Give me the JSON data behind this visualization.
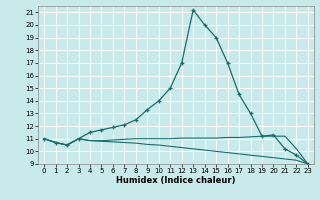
{
  "xlabel": "Humidex (Indice chaleur)",
  "xlim": [
    -0.5,
    23.5
  ],
  "ylim": [
    9,
    21.5
  ],
  "yticks": [
    9,
    10,
    11,
    12,
    13,
    14,
    15,
    16,
    17,
    18,
    19,
    20,
    21
  ],
  "xticks": [
    0,
    1,
    2,
    3,
    4,
    5,
    6,
    7,
    8,
    9,
    10,
    11,
    12,
    13,
    14,
    15,
    16,
    17,
    18,
    19,
    20,
    21,
    22,
    23
  ],
  "bg_color": "#c8eaea",
  "grid_color": "#b0d4d4",
  "line_color": "#1a6b6b",
  "line1_x": [
    0,
    1,
    2,
    3,
    4,
    5,
    6,
    7,
    8,
    9,
    10,
    11,
    12,
    13,
    14,
    15,
    16,
    17,
    18,
    19,
    20,
    21,
    22,
    23
  ],
  "line1_y": [
    11.0,
    10.7,
    10.5,
    11.0,
    11.5,
    11.7,
    11.9,
    12.1,
    12.5,
    13.3,
    14.0,
    15.0,
    17.0,
    21.2,
    20.0,
    19.0,
    17.0,
    14.5,
    13.0,
    11.2,
    11.3,
    10.2,
    9.7,
    9.0
  ],
  "line2_x": [
    0,
    1,
    2,
    3,
    4,
    5,
    6,
    7,
    8,
    9,
    10,
    11,
    12,
    13,
    14,
    15,
    16,
    17,
    18,
    19,
    20,
    21,
    22,
    23
  ],
  "line2_y": [
    11.0,
    10.7,
    10.5,
    11.0,
    10.85,
    10.85,
    10.9,
    10.95,
    11.0,
    11.0,
    11.0,
    11.0,
    11.05,
    11.05,
    11.05,
    11.05,
    11.1,
    11.1,
    11.15,
    11.2,
    11.2,
    11.2,
    10.2,
    9.0
  ],
  "line3_x": [
    0,
    1,
    2,
    3,
    4,
    5,
    6,
    7,
    8,
    9,
    10,
    11,
    12,
    13,
    14,
    15,
    16,
    17,
    18,
    19,
    20,
    21,
    22,
    23
  ],
  "line3_y": [
    11.0,
    10.7,
    10.5,
    11.0,
    10.85,
    10.8,
    10.75,
    10.7,
    10.65,
    10.55,
    10.5,
    10.4,
    10.3,
    10.2,
    10.1,
    10.0,
    9.9,
    9.8,
    9.7,
    9.6,
    9.5,
    9.4,
    9.3,
    9.0
  ]
}
